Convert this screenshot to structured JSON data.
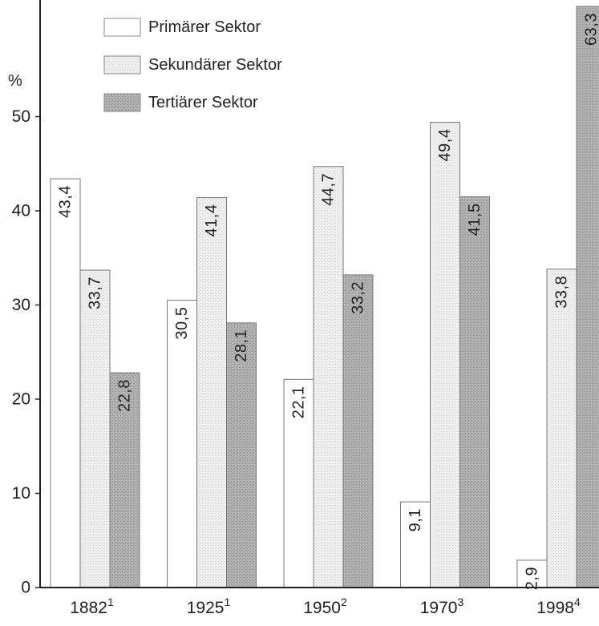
{
  "chart_data": {
    "type": "bar",
    "title": "",
    "xlabel": "",
    "ylabel": "%",
    "ylim": [
      0,
      60
    ],
    "yticks": [
      {
        "value": 0,
        "label": "0"
      },
      {
        "value": 10,
        "label": "10"
      },
      {
        "value": 20,
        "label": "20"
      },
      {
        "value": 30,
        "label": "30"
      },
      {
        "value": 40,
        "label": "40"
      },
      {
        "value": 50,
        "label": "50"
      }
    ],
    "categories": [
      {
        "year": "1882",
        "note": "1"
      },
      {
        "year": "1925",
        "note": "1"
      },
      {
        "year": "1950",
        "note": "2"
      },
      {
        "year": "1970",
        "note": "3"
      },
      {
        "year": "1998",
        "note": "4"
      }
    ],
    "series": [
      {
        "name": "Primärer Sektor",
        "color": "#ffffff",
        "values": [
          43.4,
          30.5,
          22.1,
          9.1,
          2.9
        ],
        "labels": [
          "43,4",
          "30,5",
          "22,1",
          "9,1",
          "2,9"
        ]
      },
      {
        "name": "Sekundärer Sektor",
        "color": "#ececec",
        "values": [
          33.7,
          41.4,
          44.7,
          49.4,
          33.8
        ],
        "labels": [
          "33,7",
          "41,4",
          "44,7",
          "49,4",
          "33,8"
        ]
      },
      {
        "name": "Tertiärer Sektor",
        "color": "#a9a9a9",
        "values": [
          22.8,
          28.1,
          33.2,
          41.5,
          63.3
        ],
        "labels": [
          "22,8",
          "28,1",
          "33,2",
          "41,5",
          "63,3"
        ]
      }
    ],
    "legend_position": "top-left",
    "grid": false
  }
}
